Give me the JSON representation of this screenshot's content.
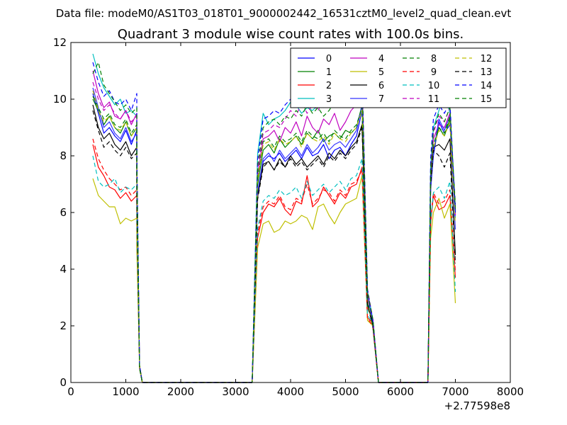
{
  "chart_data": {
    "type": "line",
    "suptitle": "Data file: modeM0/AS1T03_018T01_9000002442_16531cztM0_level2_quad_clean.evt",
    "title": "Quadrant 3 module wise count rates with 100.0s bins.",
    "xlabel": "",
    "ylabel": "",
    "x_offset_label": "+2.77598e8",
    "xlim": [
      0,
      8000
    ],
    "ylim": [
      0,
      12
    ],
    "xticks": [
      0,
      1000,
      2000,
      3000,
      4000,
      5000,
      6000,
      7000,
      8000
    ],
    "yticks": [
      0,
      2,
      4,
      6,
      8,
      10,
      12
    ],
    "grid": false,
    "legend": {
      "placement": "top-right",
      "columns": 4
    },
    "segments": [
      {
        "x_start": 400,
        "x_step": 100,
        "count": 9
      },
      {
        "x_start": 3500,
        "x_step": 100,
        "count": 19
      },
      {
        "x_start": 6600,
        "x_step": 100,
        "count": 5
      }
    ],
    "zero_stretches": [
      [
        1300,
        3300
      ],
      [
        5600,
        6500
      ]
    ],
    "edges": {
      "left_drop": [
        1200,
        1250,
        1300
      ],
      "mid_rise": [
        3300,
        3400
      ],
      "mid_drop": [
        5400,
        5500,
        5600
      ],
      "end_rise": [
        6500,
        6550
      ]
    },
    "series": [
      {
        "name": "0",
        "color": "#0000ff",
        "style": "solid",
        "values": [
          10.2,
          9.5,
          8.8,
          9.0,
          8.7,
          8.5,
          8.9,
          8.4,
          8.9,
          7.8,
          8.0,
          7.9,
          8.1,
          7.8,
          8.0,
          8.2,
          7.9,
          8.3,
          8.0,
          8.1,
          8.4,
          7.9,
          8.2,
          8.3,
          8.0,
          8.4,
          8.7,
          9.6,
          8.0,
          9.2,
          8.8,
          9.1,
          6.2
        ]
      },
      {
        "name": "1",
        "color": "#008000",
        "style": "solid",
        "values": [
          10.0,
          9.6,
          9.1,
          9.4,
          9.0,
          8.8,
          9.2,
          8.7,
          9.0,
          8.2,
          8.4,
          8.1,
          8.6,
          8.3,
          8.5,
          8.7,
          8.4,
          8.8,
          8.6,
          8.9,
          8.5,
          8.7,
          8.8,
          8.6,
          8.9,
          8.8,
          9.0,
          9.8,
          8.2,
          9.0,
          8.7,
          9.3,
          6.0
        ]
      },
      {
        "name": "2",
        "color": "#ff0000",
        "style": "solid",
        "values": [
          8.4,
          7.6,
          7.3,
          6.9,
          6.8,
          6.5,
          6.7,
          6.4,
          6.6,
          6.0,
          6.3,
          6.2,
          6.5,
          6.1,
          5.9,
          6.4,
          6.3,
          7.3,
          6.2,
          6.4,
          6.9,
          6.6,
          6.3,
          6.7,
          6.5,
          6.9,
          7.0,
          7.6,
          6.6,
          6.1,
          6.2,
          6.6,
          3.7
        ]
      },
      {
        "name": "3",
        "color": "#00bfbf",
        "style": "solid",
        "values": [
          11.6,
          10.9,
          10.4,
          10.1,
          9.8,
          10.0,
          9.5,
          9.6,
          9.4,
          9.5,
          9.1,
          9.3,
          9.4,
          9.6,
          9.9,
          9.8,
          9.5,
          9.7,
          9.6,
          9.8,
          9.7,
          9.9,
          10.1,
          10.3,
          9.9,
          10.2,
          10.4,
          10.8,
          9.0,
          9.6,
          10.3,
          9.5,
          5.8
        ]
      },
      {
        "name": "4",
        "color": "#bf00bf",
        "style": "solid",
        "values": [
          11.0,
          10.2,
          9.7,
          9.9,
          9.4,
          9.3,
          9.6,
          9.1,
          9.5,
          8.6,
          8.7,
          8.9,
          8.5,
          9.0,
          8.8,
          9.2,
          8.7,
          9.4,
          9.0,
          8.8,
          9.3,
          9.1,
          9.5,
          8.9,
          9.2,
          9.6,
          9.8,
          10.6,
          8.6,
          9.1,
          9.0,
          9.5,
          6.1
        ]
      },
      {
        "name": "5",
        "color": "#bfbf00",
        "style": "solid",
        "values": [
          7.2,
          6.6,
          6.4,
          6.2,
          6.2,
          5.6,
          5.8,
          5.7,
          5.8,
          5.6,
          5.7,
          5.3,
          5.4,
          5.7,
          5.6,
          5.7,
          5.9,
          5.8,
          5.4,
          6.2,
          6.3,
          5.9,
          5.6,
          6.0,
          6.3,
          6.4,
          6.5,
          7.3,
          6.0,
          6.5,
          5.8,
          6.3,
          2.8
        ]
      },
      {
        "name": "6",
        "color": "#000000",
        "style": "solid",
        "values": [
          9.8,
          9.0,
          8.6,
          8.8,
          8.4,
          8.2,
          8.5,
          8.0,
          8.3,
          7.7,
          7.8,
          7.5,
          7.9,
          7.6,
          8.0,
          7.7,
          7.9,
          7.6,
          7.8,
          8.0,
          7.7,
          8.1,
          7.9,
          8.2,
          8.0,
          8.3,
          8.5,
          9.1,
          8.3,
          8.4,
          8.2,
          8.6,
          4.5
        ]
      },
      {
        "name": "7",
        "color": "#3333ff",
        "style": "solid",
        "values": [
          10.4,
          9.7,
          9.0,
          9.2,
          8.8,
          8.6,
          9.0,
          8.5,
          8.8,
          7.9,
          8.1,
          7.8,
          8.2,
          7.9,
          8.1,
          8.3,
          8.0,
          8.4,
          8.1,
          8.3,
          8.6,
          8.2,
          8.4,
          8.5,
          8.3,
          8.6,
          8.9,
          9.8,
          8.1,
          9.3,
          8.9,
          9.4,
          5.4
        ]
      },
      {
        "name": "8",
        "color": "#008000",
        "style": "dashed",
        "values": [
          10.1,
          9.7,
          9.3,
          9.5,
          9.1,
          9.0,
          9.3,
          8.8,
          9.1,
          8.5,
          8.6,
          8.3,
          8.7,
          8.5,
          8.6,
          8.8,
          8.5,
          8.9,
          8.7,
          8.6,
          8.8,
          8.5,
          8.9,
          8.7,
          8.6,
          8.9,
          9.1,
          9.7,
          8.4,
          9.0,
          8.8,
          9.4,
          6.3
        ]
      },
      {
        "name": "9",
        "color": "#ff0000",
        "style": "dashed",
        "values": [
          8.6,
          7.9,
          7.5,
          7.2,
          7.0,
          6.8,
          6.9,
          6.6,
          6.8,
          6.2,
          6.4,
          6.3,
          6.6,
          6.2,
          6.1,
          6.5,
          6.4,
          7.0,
          6.3,
          6.5,
          6.8,
          6.7,
          6.4,
          6.8,
          6.6,
          7.0,
          7.1,
          7.5,
          6.7,
          6.3,
          6.4,
          6.8,
          3.9
        ]
      },
      {
        "name": "10",
        "color": "#00bfbf",
        "style": "dashed",
        "values": [
          8.0,
          7.1,
          6.9,
          7.0,
          7.2,
          6.7,
          6.9,
          6.8,
          7.0,
          6.4,
          6.6,
          6.5,
          6.8,
          6.6,
          6.7,
          6.9,
          6.5,
          7.1,
          6.6,
          6.8,
          7.0,
          6.7,
          6.9,
          7.1,
          6.8,
          7.2,
          7.3,
          7.9,
          6.7,
          6.9,
          6.5,
          7.1,
          3.2
        ]
      },
      {
        "name": "11",
        "color": "#bf00bf",
        "style": "dashed",
        "values": [
          10.6,
          10.0,
          9.6,
          9.8,
          9.5,
          9.3,
          9.6,
          9.2,
          9.4,
          8.8,
          8.9,
          9.1,
          9.0,
          9.3,
          9.6,
          9.4,
          9.9,
          9.5,
          9.8,
          9.6,
          10.0,
          9.7,
          10.1,
          10.2,
          9.9,
          10.3,
          10.5,
          11.0,
          8.8,
          9.4,
          9.2,
          9.7,
          5.9
        ]
      },
      {
        "name": "12",
        "color": "#bfbf00",
        "style": "dashed",
        "values": [
          10.3,
          9.6,
          9.2,
          9.4,
          9.0,
          8.9,
          9.2,
          8.7,
          9.0,
          8.4,
          8.5,
          8.2,
          8.6,
          8.4,
          8.5,
          8.7,
          8.3,
          8.8,
          8.6,
          8.5,
          8.7,
          8.4,
          8.8,
          8.6,
          8.5,
          8.8,
          9.0,
          9.6,
          8.3,
          8.9,
          8.7,
          9.2,
          5.6
        ]
      },
      {
        "name": "13",
        "color": "#000000",
        "style": "dashed",
        "values": [
          9.6,
          8.9,
          8.3,
          8.5,
          8.2,
          8.0,
          8.3,
          7.9,
          8.1,
          7.6,
          7.8,
          7.5,
          7.8,
          7.6,
          7.9,
          7.6,
          7.8,
          7.5,
          7.7,
          7.9,
          7.6,
          8.0,
          7.8,
          8.1,
          7.9,
          8.2,
          8.4,
          9.0,
          8.2,
          8.0,
          7.6,
          8.1,
          4.2
        ]
      },
      {
        "name": "14",
        "color": "#0000ff",
        "style": "dashed",
        "values": [
          11.3,
          10.6,
          10.1,
          10.3,
          9.9,
          9.8,
          10.0,
          9.6,
          10.2,
          9.3,
          9.4,
          9.6,
          9.5,
          9.8,
          10.0,
          9.7,
          9.9,
          9.8,
          10.0,
          9.9,
          10.1,
          10.0,
          10.2,
          10.3,
          10.1,
          10.4,
          10.6,
          10.9,
          9.3,
          9.8,
          9.5,
          9.9,
          6.0
        ]
      },
      {
        "name": "15",
        "color": "#008000",
        "style": "dashed",
        "values": [
          10.9,
          11.3,
          10.5,
          10.2,
          9.9,
          9.6,
          9.8,
          9.5,
          9.7,
          9.0,
          9.2,
          9.3,
          9.1,
          9.4,
          9.3,
          9.6,
          9.4,
          9.8,
          9.5,
          9.7,
          9.4,
          9.6,
          9.9,
          10.0,
          9.7,
          10.0,
          10.2,
          10.7,
          8.9,
          9.5,
          9.2,
          9.7,
          6.1
        ]
      }
    ]
  }
}
